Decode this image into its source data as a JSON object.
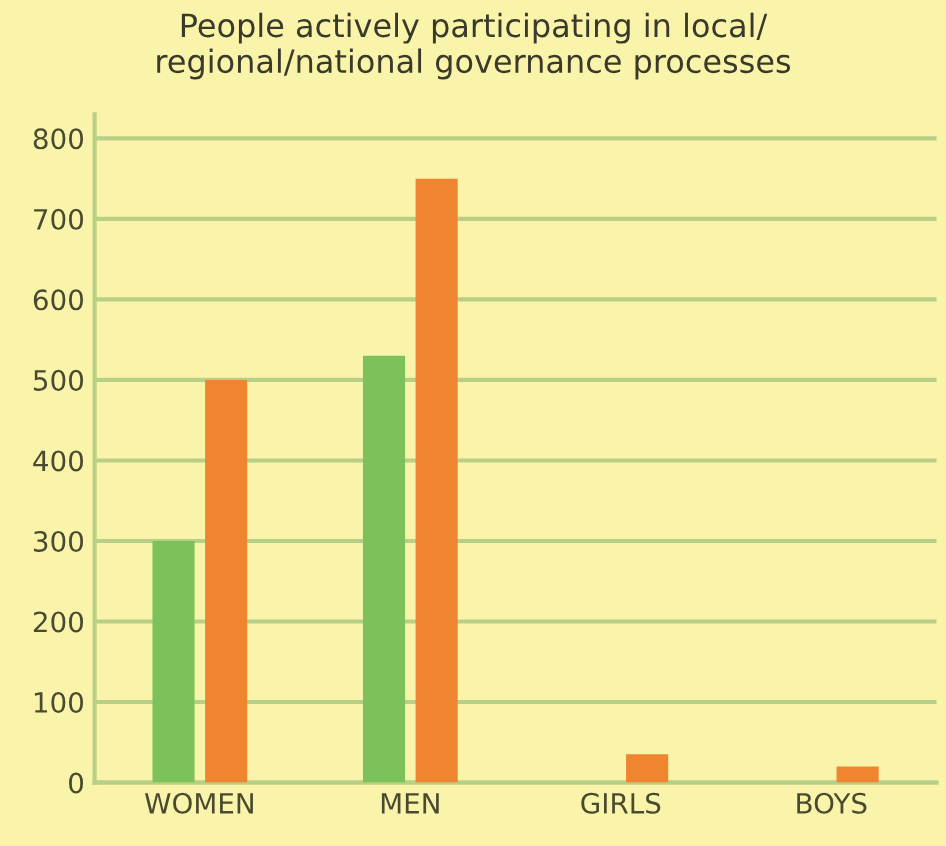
{
  "chart_data": {
    "type": "bar",
    "title": "People actively participating in local/\nregional/national governance processes",
    "categories": [
      "WOMEN",
      "MEN",
      "GIRLS",
      "BOYS"
    ],
    "series": [
      {
        "color": "#7cc15a",
        "values": [
          300,
          530,
          null,
          null
        ]
      },
      {
        "color": "#f0852f",
        "values": [
          500,
          750,
          35,
          20
        ]
      }
    ],
    "ylim": [
      0,
      830
    ],
    "yticks": [
      0,
      100,
      200,
      300,
      400,
      500,
      600,
      700,
      800
    ],
    "grid": "y"
  }
}
